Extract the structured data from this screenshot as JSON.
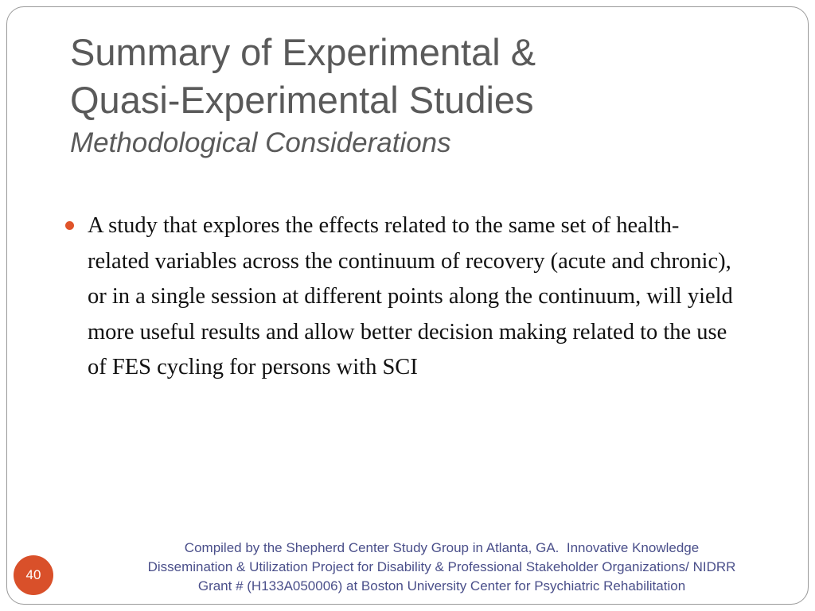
{
  "slide": {
    "title_line1": "Summary of Experimental &",
    "title_line2": "Quasi-Experimental Studies",
    "subtitle": "Methodological Considerations",
    "bullets": [
      {
        "text": "A study that explores the effects related to the same set of health-related variables across the continuum of recovery (acute and chronic), or in a single session at different points along the continuum, will yield more useful results and allow better decision making related to the use of FES cycling for persons with SCI"
      }
    ],
    "footer": {
      "line1": "Compiled by the Shepherd Center Study Group in Atlanta, GA.  Innovative Knowledge",
      "line2": "Dissemination & Utilization Project for Disability & Professional Stakeholder Organizations/ NIDRR",
      "line3": "Grant # (H133A050006) at Boston University Center for Psychiatric Rehabilitation"
    },
    "page_number": "40"
  },
  "colors": {
    "accent": "#e0542a",
    "title": "#5a5a5a",
    "footer": "#4a4f8a",
    "frame": "#9a9a9a"
  }
}
